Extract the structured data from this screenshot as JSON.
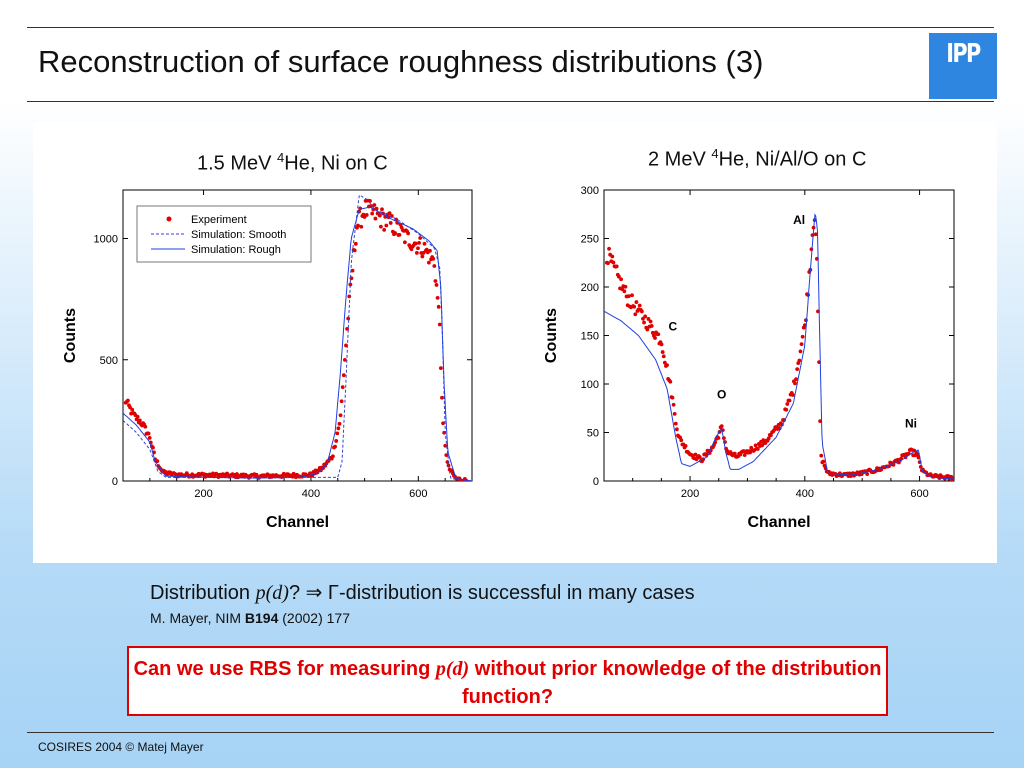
{
  "slide": {
    "title": "Reconstruction of surface roughness distributions (3)",
    "logo_text": "IPP",
    "footer": "COSIRES 2004 © Matej Mayer"
  },
  "text": {
    "distribution_prefix": "Distribution ",
    "distribution_italic": "p(d)",
    "distribution_mid": "? ⇒ Γ",
    "distribution_suffix": "-distribution is successful in many cases",
    "reference_prefix": "M. Mayer, NIM ",
    "reference_bold": "B194",
    "reference_suffix": " (2002) 177",
    "question_part1": "Can we use RBS for measuring ",
    "question_italic": "p(d)",
    "question_part2": " without prior knowledge of the distribution function?"
  },
  "colors": {
    "experiment": "#e00000",
    "simulation_smooth": "#3344cc",
    "simulation_rough": "#1f3fe0",
    "question": "#e00000",
    "logo": "#2e86e0"
  },
  "chart_data": [
    {
      "type": "scatter",
      "title_pre": "1.5 MeV ",
      "title_sup": "4",
      "title_post": "He, Ni on C",
      "xlabel": "Channel",
      "ylabel": "Counts",
      "xlim": [
        50,
        700
      ],
      "ylim": [
        0,
        1200
      ],
      "xticks": [
        200,
        400,
        600
      ],
      "yticks": [
        0,
        500,
        1000
      ],
      "legend_position": "top-left",
      "legend": [
        "Experiment",
        "Simulation: Smooth",
        "Simulation: Rough"
      ],
      "series": [
        {
          "name": "Experiment",
          "style": "points",
          "x": [
            55,
            70,
            85,
            100,
            110,
            125,
            150,
            200,
            300,
            400,
            420,
            440,
            455,
            470,
            485,
            500,
            520,
            550,
            580,
            610,
            630,
            640,
            645,
            655,
            670,
            690
          ],
          "y": [
            330,
            270,
            240,
            180,
            90,
            35,
            25,
            25,
            20,
            25,
            50,
            100,
            260,
            700,
            1050,
            1120,
            1100,
            1060,
            1000,
            960,
            900,
            650,
            250,
            60,
            10,
            2
          ]
        },
        {
          "name": "Simulation: Smooth",
          "style": "dashed",
          "x": [
            50,
            75,
            100,
            115,
            130,
            450,
            458,
            465,
            475,
            490,
            505,
            520,
            560,
            600,
            630,
            640,
            645,
            650,
            660,
            700
          ],
          "y": [
            250,
            200,
            130,
            40,
            15,
            15,
            80,
            400,
            900,
            1180,
            1160,
            1120,
            1080,
            1020,
            960,
            880,
            600,
            200,
            10,
            0
          ]
        },
        {
          "name": "Simulation: Rough",
          "style": "solid",
          "x": [
            50,
            75,
            100,
            110,
            130,
            200,
            300,
            380,
            410,
            430,
            445,
            455,
            465,
            475,
            490,
            510,
            550,
            590,
            620,
            635,
            642,
            648,
            655,
            670,
            700
          ],
          "y": [
            280,
            230,
            160,
            80,
            20,
            15,
            12,
            15,
            30,
            70,
            200,
            450,
            750,
            1000,
            1120,
            1130,
            1080,
            1040,
            990,
            950,
            800,
            400,
            120,
            10,
            0
          ]
        }
      ]
    },
    {
      "type": "scatter",
      "title_pre": "2 MeV ",
      "title_sup": "4",
      "title_post": "He, Ni/Al/O on C",
      "xlabel": "Channel",
      "ylabel": "Counts",
      "xlim": [
        50,
        660
      ],
      "ylim": [
        0,
        300
      ],
      "xticks": [
        200,
        400,
        600
      ],
      "yticks": [
        0,
        50,
        100,
        150,
        200,
        250,
        300
      ],
      "legend_position": "none",
      "annotations": [
        {
          "text": "Al",
          "x": 390,
          "y": 265
        },
        {
          "text": "C",
          "x": 170,
          "y": 155
        },
        {
          "text": "O",
          "x": 255,
          "y": 85
        },
        {
          "text": "Ni",
          "x": 585,
          "y": 55
        }
      ],
      "series": [
        {
          "name": "Experiment",
          "style": "points",
          "x": [
            55,
            70,
            90,
            110,
            130,
            150,
            165,
            180,
            200,
            220,
            240,
            255,
            265,
            280,
            300,
            330,
            360,
            380,
            400,
            410,
            415,
            418,
            422,
            428,
            440,
            470,
            500,
            530,
            560,
            585,
            595,
            605,
            620,
            660
          ],
          "y": [
            235,
            215,
            190,
            175,
            160,
            145,
            100,
            45,
            28,
            22,
            35,
            55,
            30,
            25,
            30,
            40,
            60,
            95,
            160,
            230,
            270,
            280,
            200,
            25,
            8,
            6,
            8,
            12,
            20,
            30,
            28,
            10,
            5,
            3
          ]
        },
        {
          "name": "Simulation",
          "style": "solid",
          "x": [
            50,
            80,
            110,
            140,
            160,
            175,
            185,
            200,
            230,
            245,
            255,
            262,
            270,
            285,
            310,
            350,
            380,
            400,
            410,
            418,
            422,
            426,
            430,
            440,
            480,
            530,
            570,
            590,
            598,
            605,
            620,
            660
          ],
          "y": [
            175,
            165,
            150,
            125,
            95,
            45,
            18,
            15,
            25,
            45,
            55,
            30,
            12,
            12,
            20,
            45,
            80,
            140,
            220,
            278,
            260,
            150,
            40,
            8,
            6,
            12,
            22,
            30,
            32,
            10,
            4,
            2
          ]
        }
      ]
    }
  ]
}
